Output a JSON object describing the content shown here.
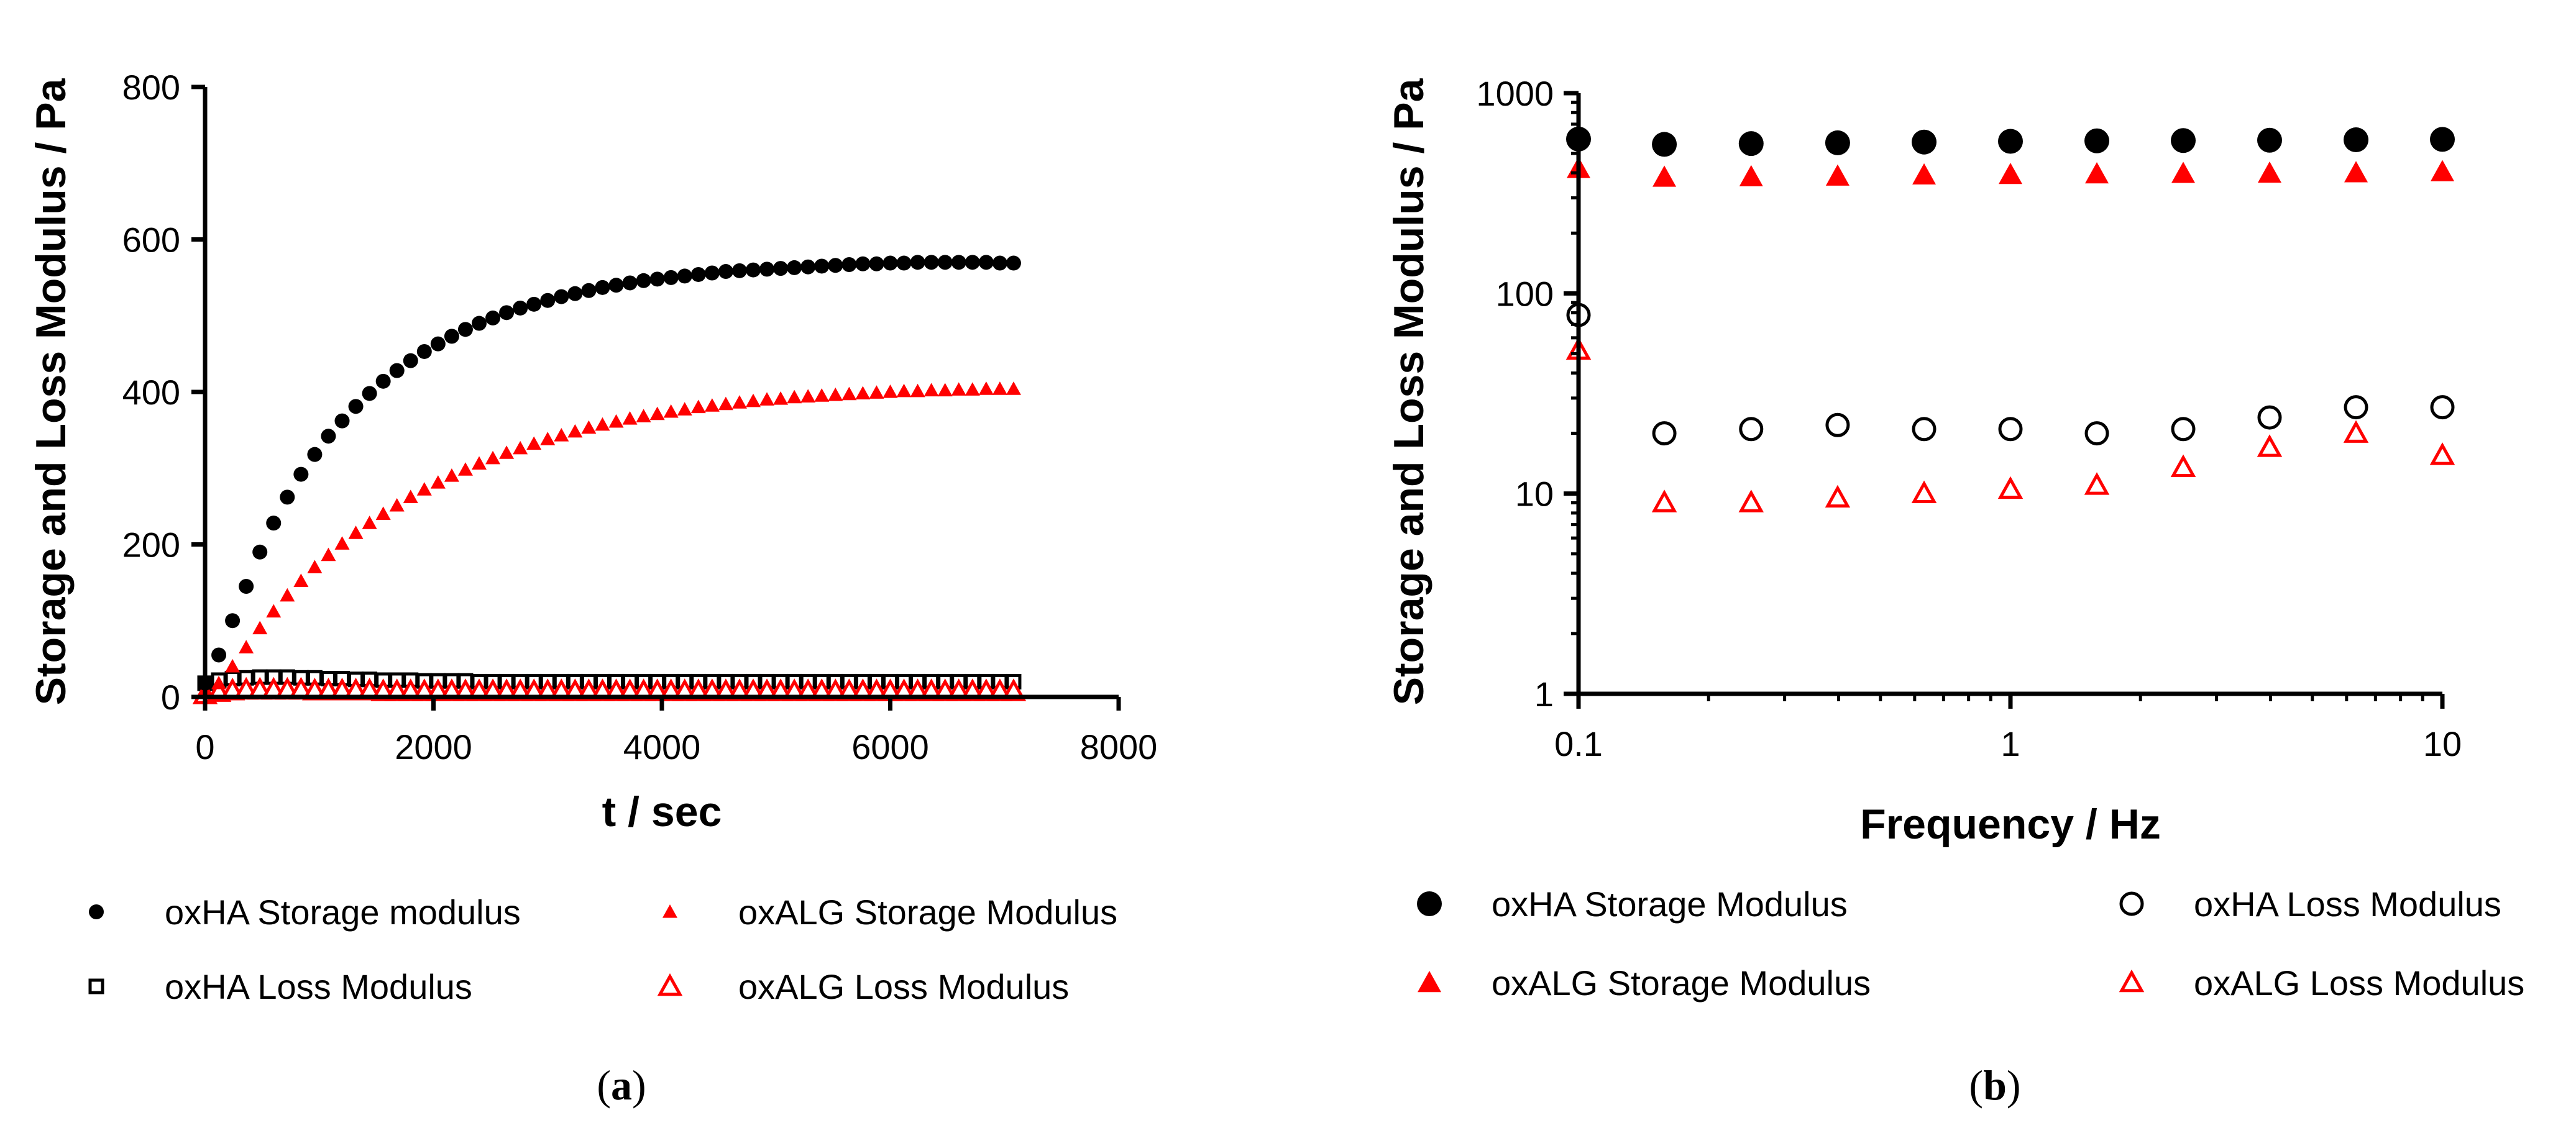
{
  "chart_data": [
    {
      "panel": "a",
      "type": "scatter",
      "caption_prefix": "(",
      "caption_letter": "a",
      "caption_suffix": ")",
      "xlabel": "t / sec",
      "ylabel": "Storage and Loss Modulus / Pa",
      "xlim": [
        0,
        8000
      ],
      "ylim": [
        0,
        800
      ],
      "xticks": [
        "0",
        "2000",
        "4000",
        "6000",
        "8000"
      ],
      "yticks": [
        "0",
        "200",
        "400",
        "600",
        "800"
      ],
      "legend_position": "below",
      "series": [
        {
          "name": "oxHA Storage modulus",
          "marker": "filled-circle-small",
          "color": "#000000",
          "x": [
            0,
            120,
            240,
            360,
            480,
            600,
            720,
            840,
            960,
            1080,
            1200,
            1320,
            1440,
            1560,
            1680,
            1800,
            1920,
            2040,
            2160,
            2280,
            2400,
            2520,
            2640,
            2760,
            2880,
            3000,
            3120,
            3240,
            3360,
            3480,
            3600,
            3720,
            3840,
            3960,
            4080,
            4200,
            4320,
            4440,
            4560,
            4680,
            4800,
            4920,
            5040,
            5160,
            5280,
            5400,
            5520,
            5640,
            5760,
            5880,
            6000,
            6120,
            6240,
            6360,
            6480,
            6600,
            6720,
            6840,
            6960,
            7080
          ],
          "y": [
            18,
            55,
            100,
            145,
            190,
            228,
            262,
            292,
            318,
            342,
            362,
            381,
            398,
            414,
            428,
            441,
            453,
            463,
            473,
            482,
            490,
            497,
            504,
            510,
            515,
            520,
            525,
            529,
            533,
            537,
            540,
            543,
            546,
            548,
            550,
            552,
            554,
            556,
            558,
            559,
            560,
            561,
            562,
            563,
            564,
            565,
            566,
            567,
            568,
            568,
            569,
            569,
            570,
            570,
            570,
            570,
            570,
            570,
            569,
            569
          ]
        },
        {
          "name": "oxHA Loss Modulus",
          "marker": "open-square",
          "color": "#000000",
          "x": [
            0,
            120,
            240,
            360,
            480,
            600,
            720,
            840,
            960,
            1080,
            1200,
            1320,
            1440,
            1560,
            1680,
            1800,
            1920,
            2040,
            2160,
            2280,
            2400,
            2520,
            2640,
            2760,
            2880,
            3000,
            3120,
            3240,
            3360,
            3480,
            3600,
            3720,
            3840,
            3960,
            4080,
            4200,
            4320,
            4440,
            4560,
            4680,
            4800,
            4920,
            5040,
            5160,
            5280,
            5400,
            5520,
            5640,
            5760,
            5880,
            6000,
            6120,
            6240,
            6360,
            6480,
            6600,
            6720,
            6840,
            6960,
            7080
          ],
          "y": [
            18,
            22,
            24,
            25,
            26,
            26,
            26,
            25,
            25,
            24,
            24,
            23,
            23,
            22,
            22,
            22,
            21,
            21,
            21,
            21,
            20,
            20,
            20,
            20,
            20,
            20,
            20,
            20,
            20,
            20,
            20,
            20,
            20,
            20,
            20,
            20,
            20,
            20,
            20,
            20,
            20,
            20,
            20,
            20,
            20,
            20,
            20,
            20,
            20,
            20,
            20,
            20,
            20,
            20,
            20,
            20,
            20,
            20,
            20,
            20
          ]
        },
        {
          "name": "oxALG Storage Modulus",
          "marker": "filled-triangle-small",
          "color": "#ff0000",
          "x": [
            0,
            120,
            240,
            360,
            480,
            600,
            720,
            840,
            960,
            1080,
            1200,
            1320,
            1440,
            1560,
            1680,
            1800,
            1920,
            2040,
            2160,
            2280,
            2400,
            2520,
            2640,
            2760,
            2880,
            3000,
            3120,
            3240,
            3360,
            3480,
            3600,
            3720,
            3840,
            3960,
            4080,
            4200,
            4320,
            4440,
            4560,
            4680,
            4800,
            4920,
            5040,
            5160,
            5280,
            5400,
            5520,
            5640,
            5760,
            5880,
            6000,
            6120,
            6240,
            6360,
            6480,
            6600,
            6720,
            6840,
            6960,
            7080
          ],
          "y": [
            5,
            18,
            40,
            65,
            90,
            112,
            133,
            152,
            170,
            186,
            201,
            215,
            228,
            240,
            251,
            262,
            272,
            281,
            290,
            298,
            306,
            313,
            320,
            326,
            332,
            338,
            343,
            348,
            353,
            357,
            361,
            365,
            368,
            371,
            374,
            377,
            380,
            382,
            384,
            386,
            388,
            390,
            391,
            393,
            394,
            395,
            396,
            397,
            398,
            399,
            400,
            401,
            401,
            402,
            402,
            403,
            403,
            404,
            404,
            404
          ]
        },
        {
          "name": "oxALG Loss Modulus",
          "marker": "open-triangle",
          "color": "#ff0000",
          "x": [
            0,
            120,
            240,
            360,
            480,
            600,
            720,
            840,
            960,
            1080,
            1200,
            1320,
            1440,
            1560,
            1680,
            1800,
            1920,
            2040,
            2160,
            2280,
            2400,
            2520,
            2640,
            2760,
            2880,
            3000,
            3120,
            3240,
            3360,
            3480,
            3600,
            3720,
            3840,
            3960,
            4080,
            4200,
            4320,
            4440,
            4560,
            4680,
            4800,
            4920,
            5040,
            5160,
            5280,
            5400,
            5520,
            5640,
            5760,
            5880,
            6000,
            6120,
            6240,
            6360,
            6480,
            6600,
            6720,
            6840,
            6960,
            7080
          ],
          "y": [
            3,
            6,
            8,
            9,
            9,
            9,
            9,
            9,
            8,
            8,
            8,
            8,
            8,
            7,
            7,
            7,
            7,
            7,
            7,
            7,
            7,
            7,
            7,
            7,
            7,
            7,
            7,
            7,
            7,
            7,
            7,
            7,
            7,
            7,
            7,
            7,
            7,
            7,
            7,
            7,
            7,
            7,
            7,
            7,
            7,
            7,
            7,
            7,
            7,
            7,
            7,
            7,
            7,
            7,
            7,
            7,
            7,
            7,
            7,
            7
          ]
        }
      ]
    },
    {
      "panel": "b",
      "type": "scatter",
      "caption_prefix": "(",
      "caption_letter": "b",
      "caption_suffix": ")",
      "xlabel": "Frequency / Hz",
      "ylabel": "Storage and  Loss Modulus / Pa",
      "xscale": "log",
      "yscale": "log",
      "xlim": [
        0.1,
        10
      ],
      "ylim": [
        1,
        1000
      ],
      "xticks": [
        "0.1",
        "1",
        "10"
      ],
      "yticks": [
        "1",
        "10",
        "100",
        "1000"
      ],
      "legend_position": "below",
      "series": [
        {
          "name": "oxHA Storage Modulus",
          "marker": "filled-circle",
          "color": "#000000",
          "x": [
            0.1,
            0.158,
            0.251,
            0.398,
            0.631,
            1.0,
            1.585,
            2.512,
            3.981,
            6.31,
            10.0
          ],
          "y": [
            590,
            555,
            560,
            565,
            570,
            575,
            578,
            580,
            582,
            585,
            588
          ]
        },
        {
          "name": "oxHA Loss Modulus",
          "marker": "open-circle",
          "color": "#000000",
          "x": [
            0.1,
            0.158,
            0.251,
            0.398,
            0.631,
            1.0,
            1.585,
            2.512,
            3.981,
            6.31,
            10.0
          ],
          "y": [
            78,
            20,
            21,
            22,
            21,
            21,
            20,
            21,
            24,
            27,
            27
          ]
        },
        {
          "name": "oxALG Storage Modulus",
          "marker": "filled-triangle",
          "color": "#ff0000",
          "x": [
            0.1,
            0.158,
            0.251,
            0.398,
            0.631,
            1.0,
            1.585,
            2.512,
            3.981,
            6.31,
            10.0
          ],
          "y": [
            420,
            380,
            382,
            385,
            390,
            392,
            395,
            397,
            398,
            400,
            405
          ]
        },
        {
          "name": "oxALG Loss Modulus",
          "marker": "open-triangle",
          "color": "#ff0000",
          "x": [
            0.1,
            0.158,
            0.251,
            0.398,
            0.631,
            1.0,
            1.585,
            2.512,
            3.981,
            6.31,
            10.0
          ],
          "y": [
            52,
            9,
            9,
            9.5,
            10,
            10.5,
            11,
            13.5,
            17,
            20,
            15.5
          ]
        }
      ]
    }
  ]
}
